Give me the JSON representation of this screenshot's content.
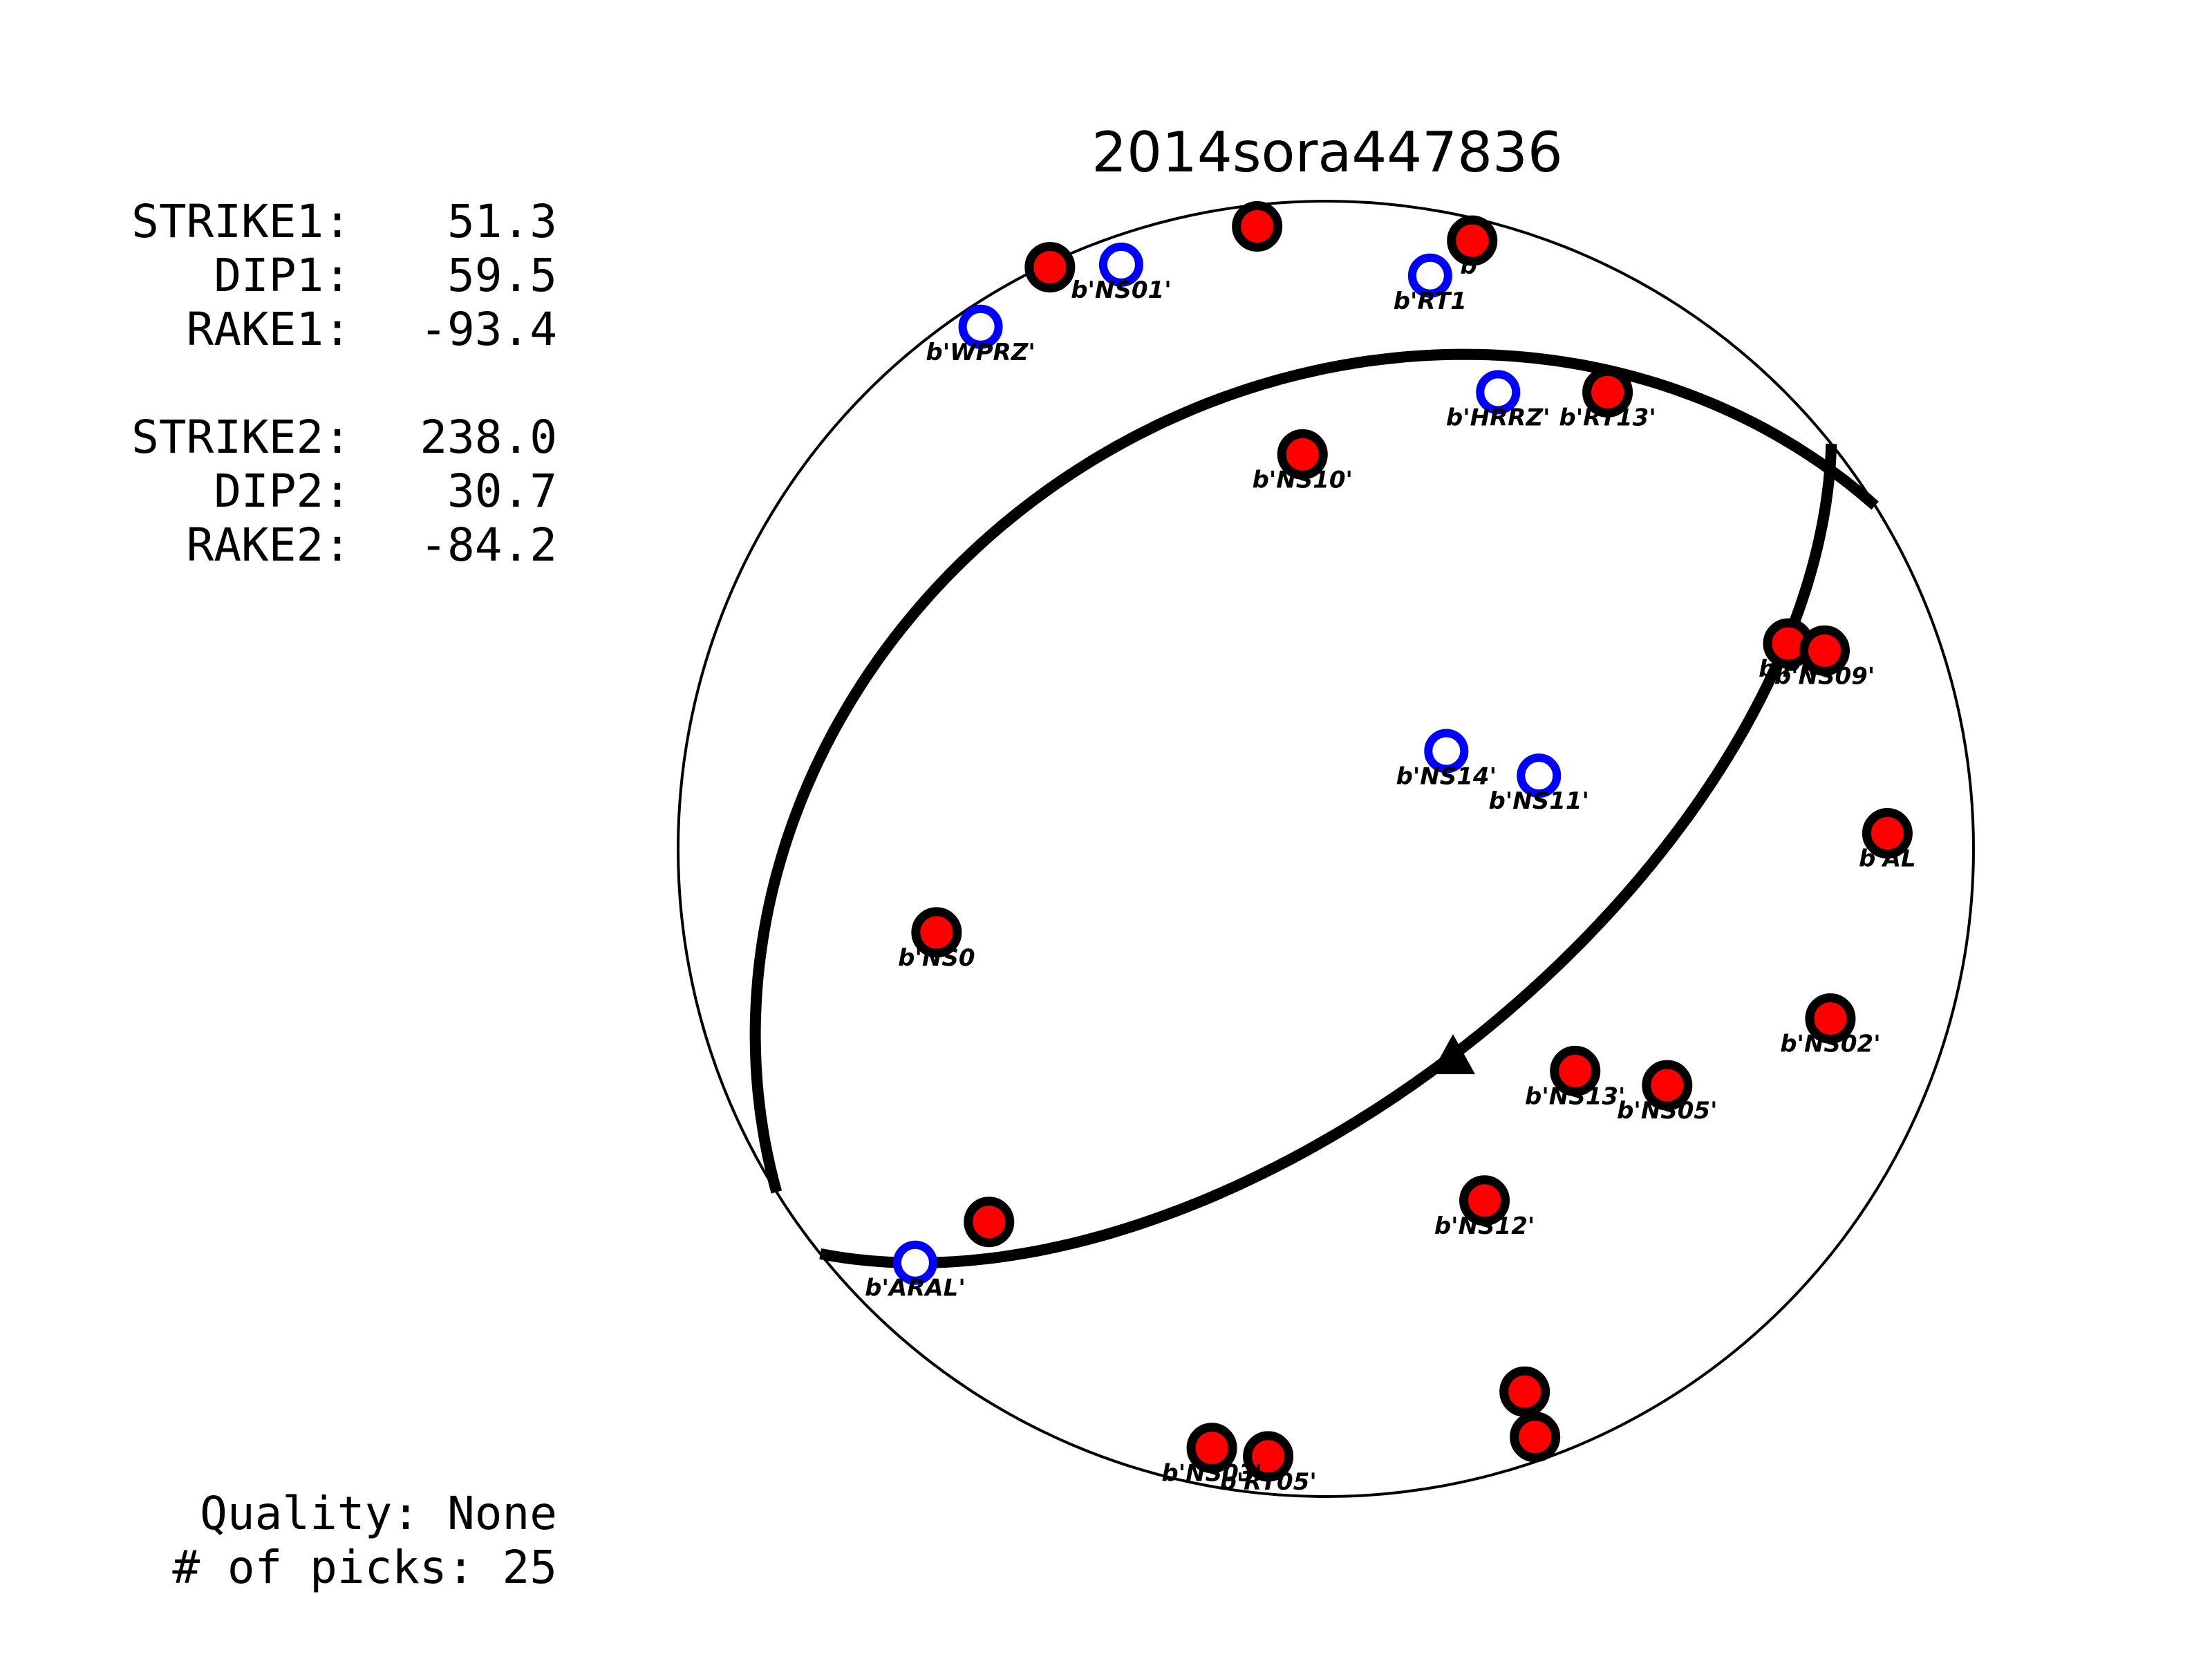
{
  "chart_data": {
    "type": "scatter",
    "title": "2014sora447836",
    "projection": "lower-hemisphere stereonet (beachball)",
    "fault_parameters": [
      {
        "label": "STRIKE1:",
        "value": "51.3"
      },
      {
        "label": "DIP1:",
        "value": "59.5"
      },
      {
        "label": "RAKE1:",
        "value": "-93.4"
      },
      {
        "label": "STRIKE2:",
        "value": "238.0"
      },
      {
        "label": "DIP2:",
        "value": "30.7"
      },
      {
        "label": "RAKE2:",
        "value": "-84.2"
      }
    ],
    "planes": [
      {
        "strike": 51.3,
        "dip": 59.5
      },
      {
        "strike": 238.0,
        "dip": 30.7
      }
    ],
    "slip_vector_marker": "triangle",
    "quality": {
      "label": "Quality:",
      "value": "None"
    },
    "picks": {
      "label": "# of picks:",
      "value": "25"
    },
    "legend": {
      "compression": {
        "symbol": "filled circle",
        "color": "#ff0000"
      },
      "dilatation": {
        "symbol": "open circle",
        "color": "#0000ff"
      }
    },
    "stations": [
      {
        "name": "b'NS01'",
        "polarity": "open",
        "x": -0.316,
        "y": 0.902
      },
      {
        "name": "b'WPRZ'",
        "polarity": "open",
        "x": -0.533,
        "y": 0.806
      },
      {
        "name": "b'RT1",
        "polarity": "open",
        "x": 0.161,
        "y": 0.885
      },
      {
        "name": "b'HRRZ'",
        "polarity": "open",
        "x": 0.266,
        "y": 0.705
      },
      {
        "name": "b'NS14'",
        "polarity": "open",
        "x": 0.186,
        "y": 0.151
      },
      {
        "name": "b'NS11'",
        "polarity": "open",
        "x": 0.329,
        "y": 0.113
      },
      {
        "name": "b'ARAL'",
        "polarity": "open",
        "x": -0.634,
        "y": -0.639
      },
      {
        "name": "",
        "polarity": "filled",
        "x": -0.106,
        "y": 0.961
      },
      {
        "name": "",
        "polarity": "filled",
        "x": -0.426,
        "y": 0.898
      },
      {
        "name": "b'",
        "polarity": "filled",
        "x": 0.226,
        "y": 0.939
      },
      {
        "name": "b'RT13'",
        "polarity": "filled",
        "x": 0.435,
        "y": 0.705
      },
      {
        "name": "b'NS10'",
        "polarity": "filled",
        "x": -0.036,
        "y": 0.609
      },
      {
        "name": "b'PR",
        "polarity": "filled",
        "x": 0.714,
        "y": 0.317
      },
      {
        "name": "b'NS09'",
        "polarity": "filled",
        "x": 0.77,
        "y": 0.306
      },
      {
        "name": "b'AL",
        "polarity": "filled",
        "x": 0.867,
        "y": 0.024
      },
      {
        "name": "b'NS0",
        "polarity": "filled",
        "x": -0.601,
        "y": -0.129
      },
      {
        "name": "b'NS02'",
        "polarity": "filled",
        "x": 0.779,
        "y": -0.262
      },
      {
        "name": "b'NS13'",
        "polarity": "filled",
        "x": 0.385,
        "y": -0.343
      },
      {
        "name": "b'NS05'",
        "polarity": "filled",
        "x": 0.527,
        "y": -0.365
      },
      {
        "name": "b'NS12'",
        "polarity": "filled",
        "x": 0.245,
        "y": -0.543
      },
      {
        "name": "",
        "polarity": "filled",
        "x": -0.52,
        "y": -0.576
      },
      {
        "name": "b'RT05'",
        "polarity": "filled",
        "x": -0.089,
        "y": -0.938
      },
      {
        "name": "b'NS03'",
        "polarity": "filled",
        "x": -0.176,
        "y": -0.925
      },
      {
        "name": "",
        "polarity": "filled",
        "x": 0.307,
        "y": -0.838
      },
      {
        "name": "",
        "polarity": "filled",
        "x": 0.323,
        "y": -0.908
      }
    ]
  }
}
